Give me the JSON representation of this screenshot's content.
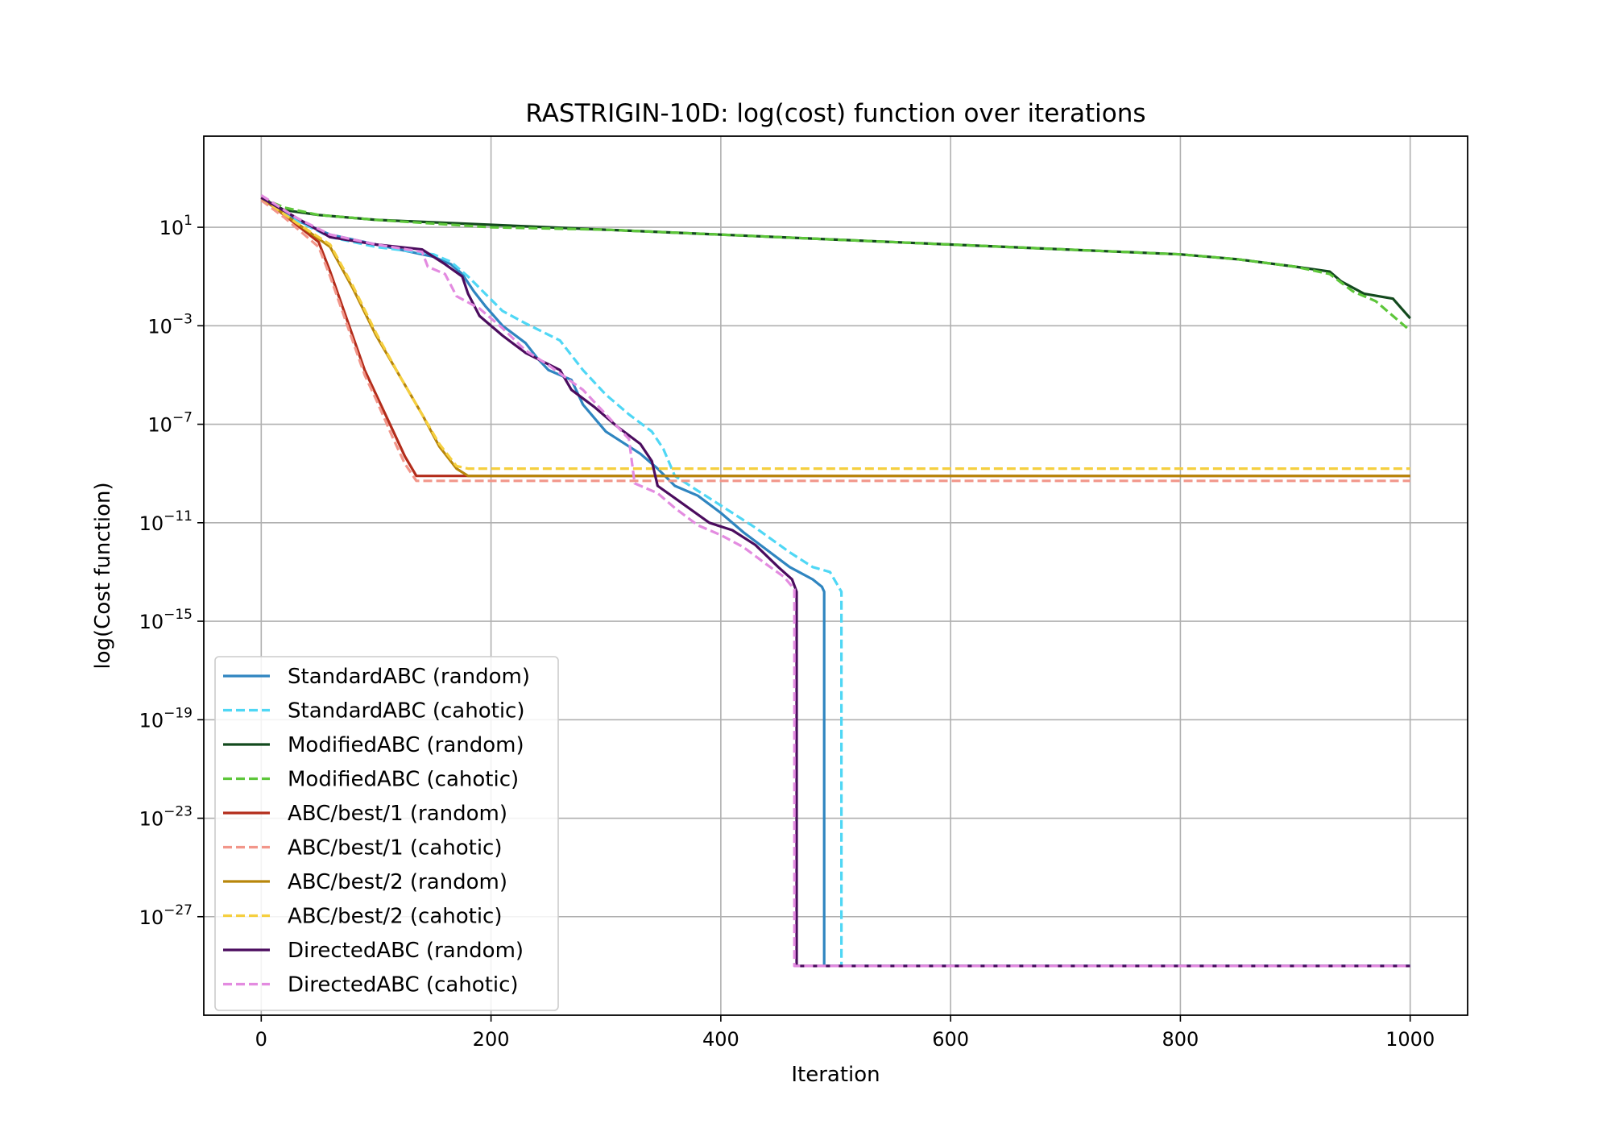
{
  "chart_data": {
    "type": "line",
    "title": "RASTRIGIN-10D: log(cost) function over iterations",
    "xlabel": "Iteration",
    "ylabel": "log(Cost function)",
    "xlim": [
      -50,
      1050
    ],
    "ylim": [
      -31,
      4.7
    ],
    "yscale": "log",
    "xticks": [
      0,
      200,
      400,
      600,
      800,
      1000
    ],
    "yticks": [
      {
        "exp": 1,
        "base": "10",
        "label": "1"
      },
      {
        "exp": -3,
        "base": "10",
        "label": "−3"
      },
      {
        "exp": -7,
        "base": "10",
        "label": "−7"
      },
      {
        "exp": -11,
        "base": "10",
        "label": "−11"
      },
      {
        "exp": -15,
        "base": "10",
        "label": "−15"
      },
      {
        "exp": -19,
        "base": "10",
        "label": "−19"
      },
      {
        "exp": -23,
        "base": "10",
        "label": "−23"
      },
      {
        "exp": -27,
        "base": "10",
        "label": "−27"
      }
    ],
    "grid": true,
    "legend_position": "lower-left",
    "value_note": "y values are log10 of cost function",
    "series": [
      {
        "name": "StandardABC (random)",
        "color": "#2f85c0",
        "dash": "solid",
        "points": [
          [
            0,
            2.2
          ],
          [
            30,
            1.3
          ],
          [
            60,
            0.7
          ],
          [
            100,
            0.3
          ],
          [
            150,
            -0.2
          ],
          [
            165,
            -0.5
          ],
          [
            175,
            -0.9
          ],
          [
            185,
            -1.6
          ],
          [
            195,
            -2.2
          ],
          [
            210,
            -3.0
          ],
          [
            230,
            -3.7
          ],
          [
            240,
            -4.3
          ],
          [
            250,
            -4.8
          ],
          [
            270,
            -5.2
          ],
          [
            280,
            -6.2
          ],
          [
            300,
            -7.3
          ],
          [
            330,
            -8.2
          ],
          [
            345,
            -8.8
          ],
          [
            360,
            -9.5
          ],
          [
            380,
            -9.9
          ],
          [
            400,
            -10.6
          ],
          [
            420,
            -11.4
          ],
          [
            440,
            -12.1
          ],
          [
            460,
            -12.8
          ],
          [
            480,
            -13.3
          ],
          [
            488,
            -13.6
          ],
          [
            490,
            -13.8
          ],
          [
            490,
            -29.0
          ],
          [
            1000,
            -29.0
          ]
        ]
      },
      {
        "name": "StandardABC (cahotic)",
        "color": "#4fd7f5",
        "dash": "dashed",
        "points": [
          [
            0,
            2.2
          ],
          [
            30,
            1.3
          ],
          [
            60,
            0.6
          ],
          [
            100,
            0.2
          ],
          [
            150,
            -0.1
          ],
          [
            165,
            -0.4
          ],
          [
            180,
            -1.0
          ],
          [
            195,
            -1.7
          ],
          [
            210,
            -2.4
          ],
          [
            230,
            -2.9
          ],
          [
            260,
            -3.6
          ],
          [
            280,
            -4.8
          ],
          [
            300,
            -5.8
          ],
          [
            320,
            -6.6
          ],
          [
            340,
            -7.3
          ],
          [
            350,
            -8.0
          ],
          [
            360,
            -9.1
          ],
          [
            380,
            -9.7
          ],
          [
            400,
            -10.3
          ],
          [
            430,
            -11.2
          ],
          [
            460,
            -12.2
          ],
          [
            480,
            -12.8
          ],
          [
            495,
            -13.0
          ],
          [
            505,
            -13.8
          ],
          [
            505,
            -29.0
          ],
          [
            1000,
            -29.0
          ]
        ]
      },
      {
        "name": "ModifiedABC (random)",
        "color": "#134a1e",
        "dash": "solid",
        "points": [
          [
            0,
            2.2
          ],
          [
            20,
            1.7
          ],
          [
            50,
            1.5
          ],
          [
            100,
            1.3
          ],
          [
            200,
            1.1
          ],
          [
            300,
            0.9
          ],
          [
            400,
            0.7
          ],
          [
            500,
            0.5
          ],
          [
            600,
            0.3
          ],
          [
            700,
            0.1
          ],
          [
            800,
            -0.1
          ],
          [
            850,
            -0.3
          ],
          [
            900,
            -0.6
          ],
          [
            930,
            -0.8
          ],
          [
            940,
            -1.2
          ],
          [
            960,
            -1.7
          ],
          [
            985,
            -1.9
          ],
          [
            1000,
            -2.7
          ]
        ]
      },
      {
        "name": "ModifiedABC (cahotic)",
        "color": "#5dc63a",
        "dash": "dashed",
        "points": [
          [
            0,
            2.2
          ],
          [
            20,
            1.8
          ],
          [
            50,
            1.5
          ],
          [
            100,
            1.3
          ],
          [
            200,
            1.0
          ],
          [
            300,
            0.9
          ],
          [
            400,
            0.7
          ],
          [
            500,
            0.5
          ],
          [
            600,
            0.3
          ],
          [
            700,
            0.1
          ],
          [
            800,
            -0.1
          ],
          [
            850,
            -0.3
          ],
          [
            900,
            -0.6
          ],
          [
            930,
            -0.9
          ],
          [
            950,
            -1.6
          ],
          [
            970,
            -2.0
          ],
          [
            985,
            -2.6
          ],
          [
            1000,
            -3.2
          ]
        ]
      },
      {
        "name": "ABC/best/1 (random)",
        "color": "#b32c1a",
        "dash": "solid",
        "points": [
          [
            0,
            2.2
          ],
          [
            20,
            1.5
          ],
          [
            50,
            0.4
          ],
          [
            60,
            -0.8
          ],
          [
            75,
            -2.8
          ],
          [
            90,
            -4.8
          ],
          [
            100,
            -5.8
          ],
          [
            115,
            -7.3
          ],
          [
            125,
            -8.3
          ],
          [
            135,
            -9.1
          ],
          [
            160,
            -9.1
          ],
          [
            1000,
            -9.1
          ]
        ]
      },
      {
        "name": "ABC/best/1 (cahotic)",
        "color": "#f2968a",
        "dash": "dashed",
        "points": [
          [
            0,
            2.1
          ],
          [
            20,
            1.4
          ],
          [
            50,
            0.2
          ],
          [
            60,
            -1.0
          ],
          [
            75,
            -3.0
          ],
          [
            90,
            -5.0
          ],
          [
            100,
            -6.0
          ],
          [
            115,
            -7.6
          ],
          [
            125,
            -8.6
          ],
          [
            135,
            -9.3
          ],
          [
            160,
            -9.3
          ],
          [
            1000,
            -9.3
          ]
        ]
      },
      {
        "name": "ABC/best/2 (random)",
        "color": "#b8860b",
        "dash": "solid",
        "points": [
          [
            0,
            2.2
          ],
          [
            30,
            1.2
          ],
          [
            60,
            0.2
          ],
          [
            80,
            -1.5
          ],
          [
            100,
            -3.4
          ],
          [
            120,
            -5.0
          ],
          [
            140,
            -6.6
          ],
          [
            155,
            -7.9
          ],
          [
            170,
            -8.8
          ],
          [
            180,
            -9.1
          ],
          [
            1000,
            -9.1
          ]
        ]
      },
      {
        "name": "ABC/best/2 (cahotic)",
        "color": "#f5cf3f",
        "dash": "dashed",
        "points": [
          [
            0,
            2.2
          ],
          [
            30,
            1.2
          ],
          [
            60,
            0.3
          ],
          [
            80,
            -1.4
          ],
          [
            100,
            -3.3
          ],
          [
            120,
            -5.0
          ],
          [
            140,
            -6.6
          ],
          [
            155,
            -7.8
          ],
          [
            170,
            -8.7
          ],
          [
            180,
            -8.8
          ],
          [
            1000,
            -8.8
          ]
        ]
      },
      {
        "name": "DirectedABC (random)",
        "color": "#4b0c5e",
        "dash": "solid",
        "points": [
          [
            0,
            2.2
          ],
          [
            30,
            1.4
          ],
          [
            60,
            0.6
          ],
          [
            100,
            0.3
          ],
          [
            140,
            0.1
          ],
          [
            160,
            -0.5
          ],
          [
            175,
            -1.0
          ],
          [
            180,
            -1.7
          ],
          [
            190,
            -2.6
          ],
          [
            210,
            -3.4
          ],
          [
            230,
            -4.1
          ],
          [
            260,
            -4.8
          ],
          [
            270,
            -5.6
          ],
          [
            290,
            -6.3
          ],
          [
            310,
            -7.1
          ],
          [
            330,
            -7.8
          ],
          [
            340,
            -8.5
          ],
          [
            345,
            -9.5
          ],
          [
            360,
            -10.0
          ],
          [
            390,
            -11.0
          ],
          [
            410,
            -11.3
          ],
          [
            430,
            -11.9
          ],
          [
            450,
            -12.8
          ],
          [
            462,
            -13.3
          ],
          [
            466,
            -13.8
          ],
          [
            466,
            -29.0
          ],
          [
            1000,
            -29.0
          ]
        ]
      },
      {
        "name": "DirectedABC (cahotic)",
        "color": "#e38be0",
        "dash": "dashed",
        "points": [
          [
            0,
            2.3
          ],
          [
            30,
            1.4
          ],
          [
            60,
            0.7
          ],
          [
            100,
            0.3
          ],
          [
            140,
            0.0
          ],
          [
            145,
            -0.6
          ],
          [
            160,
            -0.9
          ],
          [
            170,
            -1.8
          ],
          [
            190,
            -2.3
          ],
          [
            210,
            -3.1
          ],
          [
            230,
            -4.0
          ],
          [
            250,
            -4.6
          ],
          [
            280,
            -5.6
          ],
          [
            300,
            -6.6
          ],
          [
            320,
            -7.6
          ],
          [
            325,
            -9.4
          ],
          [
            345,
            -9.8
          ],
          [
            360,
            -10.4
          ],
          [
            380,
            -11.1
          ],
          [
            400,
            -11.5
          ],
          [
            420,
            -12.0
          ],
          [
            440,
            -12.7
          ],
          [
            455,
            -13.2
          ],
          [
            464,
            -13.7
          ],
          [
            464,
            -29.0
          ],
          [
            1000,
            -29.0
          ]
        ]
      }
    ]
  }
}
